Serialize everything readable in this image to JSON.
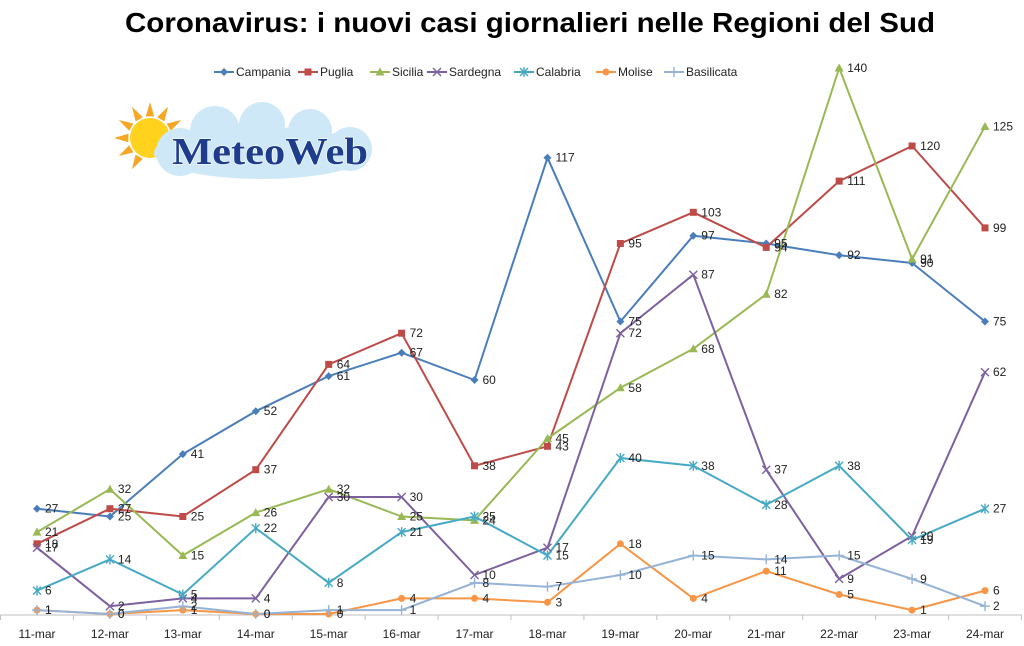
{
  "logo": {
    "text": "MeteoWeb",
    "icon": "sun-cloud-icon"
  },
  "chart_data": {
    "type": "line",
    "title": "Coronavirus: i nuovi casi giornalieri nelle Regioni del Sud",
    "categories": [
      "11-mar",
      "12-mar",
      "13-mar",
      "14-mar",
      "15-mar",
      "16-mar",
      "17-mar",
      "18-mar",
      "19-mar",
      "20-mar",
      "21-mar",
      "22-mar",
      "23-mar",
      "24-mar"
    ],
    "ylim": [
      0,
      145
    ],
    "grid": false,
    "legend": "top",
    "data_labels": true,
    "series": [
      {
        "name": "Campania",
        "color": "#4A7EBB",
        "marker": "diamond",
        "values": [
          27,
          25,
          41,
          52,
          61,
          67,
          60,
          117,
          75,
          97,
          95,
          92,
          90,
          75
        ]
      },
      {
        "name": "Puglia",
        "color": "#BE4B48",
        "marker": "square",
        "values": [
          18,
          27,
          25,
          37,
          64,
          72,
          38,
          43,
          95,
          103,
          94,
          111,
          120,
          99
        ]
      },
      {
        "name": "Sicilia",
        "color": "#98B954",
        "marker": "triangle",
        "values": [
          21,
          32,
          15,
          26,
          32,
          25,
          24,
          45,
          58,
          68,
          82,
          140,
          91,
          125
        ]
      },
      {
        "name": "Sardegna",
        "color": "#7D60A0",
        "marker": "x",
        "values": [
          17,
          2,
          4,
          4,
          30,
          30,
          10,
          17,
          72,
          87,
          37,
          9,
          20,
          62
        ]
      },
      {
        "name": "Calabria",
        "color": "#46AAC5",
        "marker": "asterisk",
        "values": [
          6,
          14,
          5,
          22,
          8,
          21,
          25,
          15,
          40,
          38,
          28,
          38,
          19,
          27
        ]
      },
      {
        "name": "Molise",
        "color": "#F79646",
        "marker": "circle",
        "values": [
          1,
          0,
          1,
          0,
          0,
          4,
          4,
          3,
          18,
          4,
          11,
          5,
          1,
          6
        ]
      },
      {
        "name": "Basilicata",
        "color": "#95B3D7",
        "marker": "plus",
        "values": [
          1,
          0,
          2,
          0,
          1,
          1,
          8,
          7,
          10,
          15,
          14,
          15,
          9,
          2
        ]
      }
    ]
  }
}
